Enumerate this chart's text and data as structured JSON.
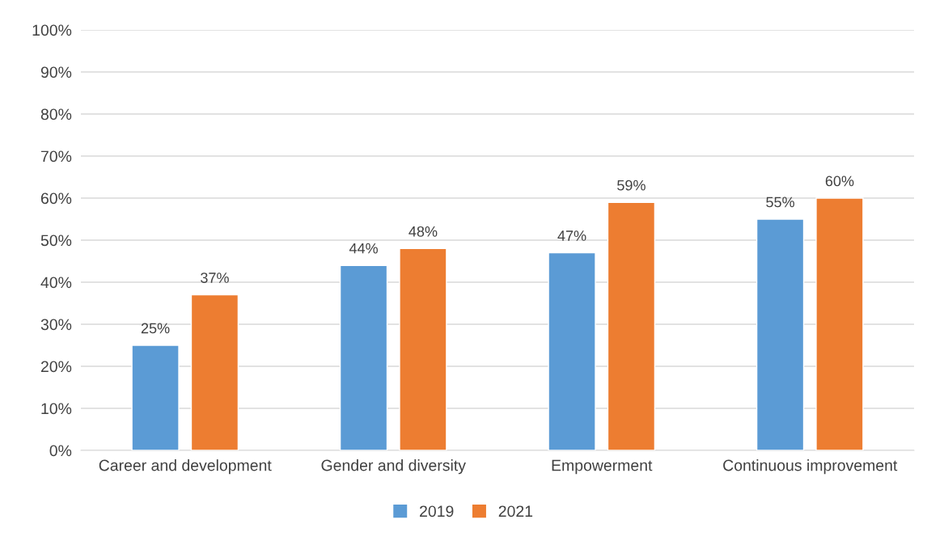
{
  "chart_data": {
    "type": "bar",
    "categories": [
      "Career and development",
      "Gender and diversity",
      "Empowerment",
      "Continuous improvement"
    ],
    "series": [
      {
        "name": "2019",
        "color": "#5b9bd5",
        "values": [
          25,
          44,
          47,
          55
        ],
        "value_labels": [
          "25%",
          "44%",
          "47%",
          "55%"
        ]
      },
      {
        "name": "2021",
        "color": "#ed7d31",
        "values": [
          37,
          48,
          59,
          60
        ],
        "value_labels": [
          "37%",
          "48%",
          "59%",
          "60%"
        ]
      }
    ],
    "ylim": [
      0,
      100
    ],
    "yticks": [
      {
        "value": 0,
        "label": "0%"
      },
      {
        "value": 10,
        "label": "10%"
      },
      {
        "value": 20,
        "label": "20%"
      },
      {
        "value": 30,
        "label": "30%"
      },
      {
        "value": 40,
        "label": "40%"
      },
      {
        "value": 50,
        "label": "50%"
      },
      {
        "value": 60,
        "label": "60%"
      },
      {
        "value": 70,
        "label": "70%"
      },
      {
        "value": 80,
        "label": "80%"
      },
      {
        "value": 90,
        "label": "90%"
      },
      {
        "value": 100,
        "label": "100%"
      }
    ],
    "grid": "y",
    "legend": "bottom"
  }
}
